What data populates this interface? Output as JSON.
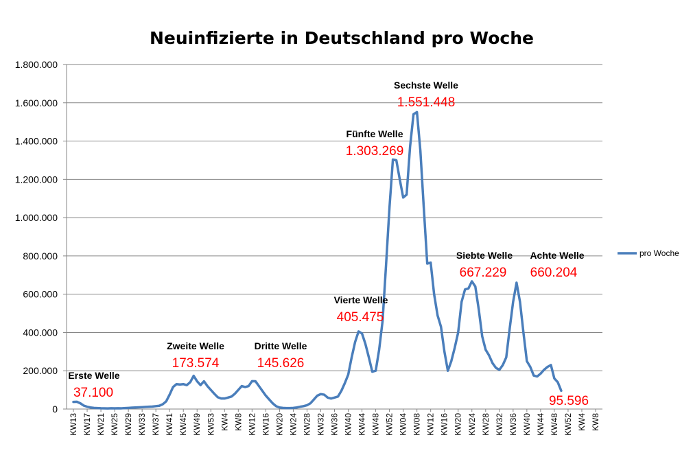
{
  "chart_data": {
    "type": "line",
    "title": "Neuinfizierte in Deutschland pro Woche",
    "xlabel": "",
    "ylabel": "",
    "ylim": [
      0,
      1800000
    ],
    "grid": true,
    "legend_position": "right",
    "y_ticks": [
      "0",
      "200.000",
      "400.000",
      "600.000",
      "800.000",
      "1.000.000",
      "1.200.000",
      "1.400.000",
      "1.600.000",
      "1.800.000"
    ],
    "x_tick_labels": [
      "KW13",
      "KW17",
      "KW21",
      "KW25",
      "KW29",
      "KW33",
      "KW37",
      "KW41",
      "KW45",
      "KW49",
      "KW53",
      "KW4",
      "KW8",
      "KW12",
      "KW16",
      "KW20",
      "KW24",
      "KW28",
      "KW32",
      "KW36",
      "KW40",
      "KW44",
      "KW48",
      "KW52",
      "KW04",
      "KW08",
      "KW12",
      "KW16",
      "KW20",
      "KW24",
      "KW28",
      "KW32",
      "KW36",
      "KW40",
      "KW44",
      "KW48",
      "KW52",
      "KW4",
      "KW8"
    ],
    "series": [
      {
        "name": "pro Woche",
        "color": "#4a7ebb",
        "values": [
          37100,
          38000,
          30000,
          18000,
          12000,
          8000,
          6000,
          5000,
          4000,
          3500,
          3000,
          4000,
          3500,
          4000,
          3800,
          5000,
          6000,
          7000,
          8000,
          9000,
          10000,
          11000,
          12000,
          13000,
          15000,
          17000,
          25000,
          40000,
          75000,
          115000,
          130000,
          128000,
          130000,
          125000,
          140000,
          173574,
          145000,
          125000,
          145000,
          120000,
          100000,
          80000,
          62000,
          55000,
          55000,
          60000,
          65000,
          80000,
          100000,
          120000,
          115000,
          120000,
          145626,
          145000,
          120000,
          95000,
          70000,
          50000,
          30000,
          15000,
          8000,
          6000,
          5000,
          5000,
          6000,
          8000,
          12000,
          15000,
          20000,
          30000,
          50000,
          70000,
          78000,
          75000,
          60000,
          55000,
          60000,
          65000,
          95000,
          135000,
          180000,
          270000,
          350000,
          405475,
          395000,
          340000,
          270000,
          195000,
          200000,
          310000,
          460000,
          750000,
          1050000,
          1303269,
          1300000,
          1200000,
          1105000,
          1120000,
          1370000,
          1540000,
          1551448,
          1350000,
          1050000,
          760000,
          765000,
          600000,
          490000,
          430000,
          300000,
          200000,
          250000,
          320000,
          400000,
          560000,
          625000,
          630000,
          667229,
          640000,
          520000,
          380000,
          310000,
          280000,
          240000,
          215000,
          205000,
          230000,
          270000,
          420000,
          560000,
          660204,
          560000,
          400000,
          250000,
          220000,
          175000,
          170000,
          185000,
          205000,
          220000,
          230000,
          160000,
          140000,
          95596
        ]
      }
    ],
    "annotations": [
      {
        "label": "Erste Welle",
        "value": "37.100"
      },
      {
        "label": "Zweite Welle",
        "value": "173.574"
      },
      {
        "label": "Dritte Welle",
        "value": "145.626"
      },
      {
        "label": "Vierte Welle",
        "value": "405.475"
      },
      {
        "label": "Fünfte Welle",
        "value": "1.303.269"
      },
      {
        "label": "Sechste Welle",
        "value": "1.551.448"
      },
      {
        "label": "Siebte Welle",
        "value": "667.229"
      },
      {
        "label": "Achte Welle",
        "value": "660.204"
      },
      {
        "label": "",
        "value": "95.596"
      }
    ]
  }
}
